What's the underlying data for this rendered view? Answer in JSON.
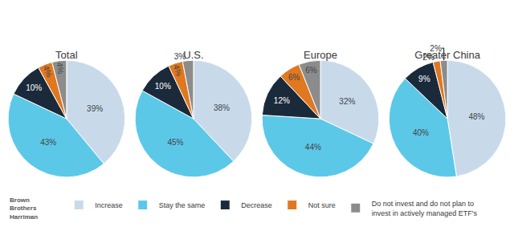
{
  "chart_data": [
    {
      "type": "pie",
      "title": "Total",
      "categories": [
        "Increase",
        "Stay the same",
        "Decrease",
        "Not sure",
        "Do not invest and do not plan to\ninvest in actively managed ETF's"
      ],
      "values": [
        39,
        43,
        10,
        4,
        4
      ],
      "value_labels": [
        "39%",
        "43%",
        "10%",
        "4%",
        "4%"
      ],
      "colors": [
        "#c8daea",
        "#5bc8e8",
        "#1b2a3b",
        "#e07820",
        "#8c8c8c"
      ],
      "data_labels": true,
      "legend": "bottom",
      "annotations": [
        "Brown\nBrothers\nHarriman"
      ]
    },
    {
      "type": "pie",
      "title": "U.S.",
      "categories": [
        "Increase",
        "Stay the same",
        "Decrease",
        "Not sure",
        "Do not invest and do not plan to\ninvest in actively managed ETF's"
      ],
      "values": [
        38,
        45,
        10,
        4,
        3
      ],
      "value_labels": [
        "38%",
        "45%",
        "10%",
        "4%",
        "3%"
      ],
      "colors": [
        "#c8daea",
        "#5bc8e8",
        "#1b2a3b",
        "#e07820",
        "#8c8c8c"
      ],
      "data_labels": true
    },
    {
      "type": "pie",
      "title": "Europe",
      "categories": [
        "Increase",
        "Stay the same",
        "Decrease",
        "Not sure",
        "Do not invest and do not plan to\ninvest in actively managed ETF's"
      ],
      "values": [
        32,
        44,
        12,
        6,
        6
      ],
      "value_labels": [
        "32%",
        "44%",
        "12%",
        "6%",
        "6%"
      ],
      "colors": [
        "#c8daea",
        "#5bc8e8",
        "#1b2a3b",
        "#e07820",
        "#8c8c8c"
      ],
      "data_labels": true
    },
    {
      "type": "pie",
      "title": "Greater China",
      "categories": [
        "Increase",
        "Stay the same",
        "Decrease",
        "Not sure",
        "Do not invest and do not plan to\ninvest in actively managed ETF's"
      ],
      "values": [
        48,
        40,
        9,
        2,
        2
      ],
      "value_labels": [
        "48%",
        "40%",
        "9%",
        "2%",
        "2%"
      ],
      "colors": [
        "#c8daea",
        "#5bc8e8",
        "#1b2a3b",
        "#e07820",
        "#8c8c8c"
      ],
      "data_labels": true
    }
  ]
}
